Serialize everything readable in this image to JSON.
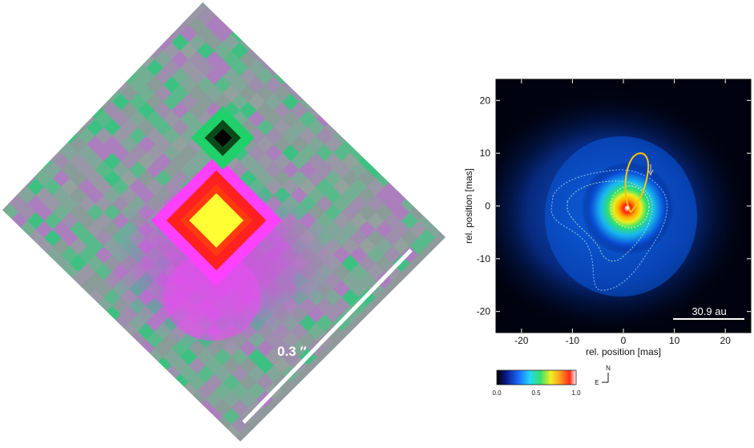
{
  "left_image": {
    "scale_label": "0.3 ″"
  },
  "right_image": {
    "xlabel": "rel. position [mas]",
    "ylabel": "rel. position [mas]",
    "xlim": [
      -25,
      25
    ],
    "ylim": [
      -24,
      24
    ],
    "x_ticks": [
      "-20",
      "-10",
      "0",
      "10",
      "20"
    ],
    "y_ticks": [
      "20",
      "10",
      "0",
      "-10",
      "-20"
    ],
    "scale_label": "30.9 au",
    "colorbar": {
      "tick_labels": [
        "0.0",
        "0.5",
        "1.0"
      ],
      "colors": [
        "#000000",
        "#0a1a8a",
        "#1a6dff",
        "#22d8f0",
        "#35e06a",
        "#f0f020",
        "#ff9a20",
        "#ff2a1a",
        "#ffffff"
      ]
    },
    "compass": {
      "north": "N",
      "east": "E"
    }
  }
}
